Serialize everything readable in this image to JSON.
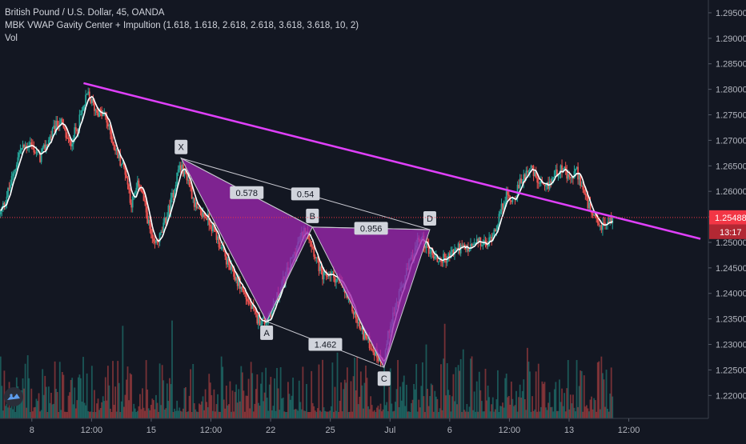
{
  "legend": {
    "symbol": "British Pound / U.S. Dollar, 45, OANDA",
    "indicator": "MBK VWAP Gavity Center + Impultion (1.618, 1.618, 2.618, 2.618, 3.618, 3.618, 10, 2)",
    "volume": "Vol"
  },
  "price_badge": {
    "price": "1.25488",
    "countdown": "13:17"
  },
  "colors": {
    "background": "#131722",
    "up": "#26a69a",
    "down": "#ef5350",
    "pattern_fill": "#9c27b0",
    "trendline": "#e040fb",
    "vwap": "#ffffff",
    "price_line": "#f23645"
  },
  "logo_icon": "tradingview-logo-icon",
  "chart_data": {
    "type": "candlestick",
    "title": "British Pound / U.S. Dollar, 45, OANDA",
    "y_ticks": [
      1.295,
      1.29,
      1.285,
      1.28,
      1.275,
      1.27,
      1.265,
      1.26,
      1.255,
      1.25,
      1.245,
      1.24,
      1.235,
      1.23,
      1.225,
      1.22
    ],
    "y_tick_labels": [
      "1.29500",
      "1.29000",
      "1.28500",
      "1.28000",
      "1.27500",
      "1.27000",
      "1.26500",
      "1.26000",
      "1.25500",
      "1.25000",
      "1.24500",
      "1.24000",
      "1.23500",
      "1.23000",
      "1.22500",
      "1.22000"
    ],
    "ylim": [
      1.2155,
      1.2975
    ],
    "x_ticks": [
      {
        "label": "8",
        "t": 8.0
      },
      {
        "label": "12:00",
        "t": 9.5
      },
      {
        "label": "15",
        "t": 11.0
      },
      {
        "label": "12:00",
        "t": 12.5
      },
      {
        "label": "22",
        "t": 14.0
      },
      {
        "label": "25",
        "t": 15.5
      },
      {
        "label": "Jul",
        "t": 17.0
      },
      {
        "label": "6",
        "t": 18.5
      },
      {
        "label": "12:00",
        "t": 20.0
      },
      {
        "label": "13",
        "t": 21.5
      },
      {
        "label": "12:00",
        "t": 23.0
      }
    ],
    "xlim": [
      7.2,
      25.0
    ],
    "current_price": 1.25488,
    "close_path": [
      {
        "t": 7.2,
        "p": 1.2555
      },
      {
        "t": 7.45,
        "p": 1.261
      },
      {
        "t": 7.7,
        "p": 1.268
      },
      {
        "t": 7.95,
        "p": 1.2695
      },
      {
        "t": 8.2,
        "p": 1.2665
      },
      {
        "t": 8.45,
        "p": 1.2705
      },
      {
        "t": 8.7,
        "p": 1.274
      },
      {
        "t": 8.95,
        "p": 1.269
      },
      {
        "t": 9.2,
        "p": 1.274
      },
      {
        "t": 9.4,
        "p": 1.279
      },
      {
        "t": 9.6,
        "p": 1.276
      },
      {
        "t": 9.85,
        "p": 1.2745
      },
      {
        "t": 10.1,
        "p": 1.268
      },
      {
        "t": 10.35,
        "p": 1.264
      },
      {
        "t": 10.5,
        "p": 1.2575
      },
      {
        "t": 10.7,
        "p": 1.262
      },
      {
        "t": 10.9,
        "p": 1.255
      },
      {
        "t": 11.05,
        "p": 1.249
      },
      {
        "t": 11.25,
        "p": 1.2515
      },
      {
        "t": 11.5,
        "p": 1.258
      },
      {
        "t": 11.7,
        "p": 1.265
      },
      {
        "t": 11.9,
        "p": 1.263
      },
      {
        "t": 12.15,
        "p": 1.256
      },
      {
        "t": 12.4,
        "p": 1.255
      },
      {
        "t": 12.6,
        "p": 1.252
      },
      {
        "t": 12.8,
        "p": 1.248
      },
      {
        "t": 13.0,
        "p": 1.2445
      },
      {
        "t": 13.2,
        "p": 1.242
      },
      {
        "t": 13.4,
        "p": 1.239
      },
      {
        "t": 13.65,
        "p": 1.235
      },
      {
        "t": 13.9,
        "p": 1.2345
      },
      {
        "t": 14.2,
        "p": 1.24
      },
      {
        "t": 14.45,
        "p": 1.245
      },
      {
        "t": 14.7,
        "p": 1.25
      },
      {
        "t": 14.9,
        "p": 1.253
      },
      {
        "t": 15.1,
        "p": 1.248
      },
      {
        "t": 15.3,
        "p": 1.243
      },
      {
        "t": 15.5,
        "p": 1.244
      },
      {
        "t": 15.75,
        "p": 1.242
      },
      {
        "t": 16.0,
        "p": 1.238
      },
      {
        "t": 16.25,
        "p": 1.233
      },
      {
        "t": 16.5,
        "p": 1.23
      },
      {
        "t": 16.7,
        "p": 1.2275
      },
      {
        "t": 16.85,
        "p": 1.227
      },
      {
        "t": 17.0,
        "p": 1.234
      },
      {
        "t": 17.25,
        "p": 1.24
      },
      {
        "t": 17.5,
        "p": 1.246
      },
      {
        "t": 17.75,
        "p": 1.251
      },
      {
        "t": 17.95,
        "p": 1.249
      },
      {
        "t": 18.2,
        "p": 1.2465
      },
      {
        "t": 18.45,
        "p": 1.247
      },
      {
        "t": 18.7,
        "p": 1.249
      },
      {
        "t": 18.95,
        "p": 1.2485
      },
      {
        "t": 19.2,
        "p": 1.25
      },
      {
        "t": 19.45,
        "p": 1.2495
      },
      {
        "t": 19.7,
        "p": 1.254
      },
      {
        "t": 19.9,
        "p": 1.259
      },
      {
        "t": 20.1,
        "p": 1.2585
      },
      {
        "t": 20.3,
        "p": 1.262
      },
      {
        "t": 20.5,
        "p": 1.265
      },
      {
        "t": 20.7,
        "p": 1.262
      },
      {
        "t": 20.9,
        "p": 1.26
      },
      {
        "t": 21.1,
        "p": 1.263
      },
      {
        "t": 21.3,
        "p": 1.265
      },
      {
        "t": 21.5,
        "p": 1.262
      },
      {
        "t": 21.7,
        "p": 1.264
      },
      {
        "t": 21.9,
        "p": 1.259
      },
      {
        "t": 22.1,
        "p": 1.2545
      },
      {
        "t": 22.3,
        "p": 1.253
      },
      {
        "t": 22.5,
        "p": 1.254
      },
      {
        "t": 22.6,
        "p": 1.2549
      }
    ],
    "volume_scale": [
      0,
      1
    ],
    "trendline": {
      "start": {
        "t": 9.3,
        "p": 1.2812
      },
      "end": {
        "t": 24.8,
        "p": 1.2507
      }
    },
    "harmonic_pattern": {
      "points": [
        {
          "label": "X",
          "t": 11.75,
          "p": 1.2665,
          "label_pos": "above"
        },
        {
          "label": "A",
          "t": 13.9,
          "p": 1.2345,
          "label_pos": "below"
        },
        {
          "label": "B",
          "t": 15.05,
          "p": 1.253,
          "label_pos": "above"
        },
        {
          "label": "C",
          "t": 16.85,
          "p": 1.2255,
          "label_pos": "below"
        },
        {
          "label": "D",
          "t": 18.0,
          "p": 1.2525,
          "label_pos": "above"
        }
      ],
      "ratios": [
        {
          "label": "0.578",
          "from": "X",
          "to": "B"
        },
        {
          "label": "0.54",
          "from": "X",
          "to": "D"
        },
        {
          "label": "0.956",
          "from": "B",
          "to": "D"
        },
        {
          "label": "1.462",
          "from": "A",
          "to": "C"
        }
      ]
    }
  }
}
